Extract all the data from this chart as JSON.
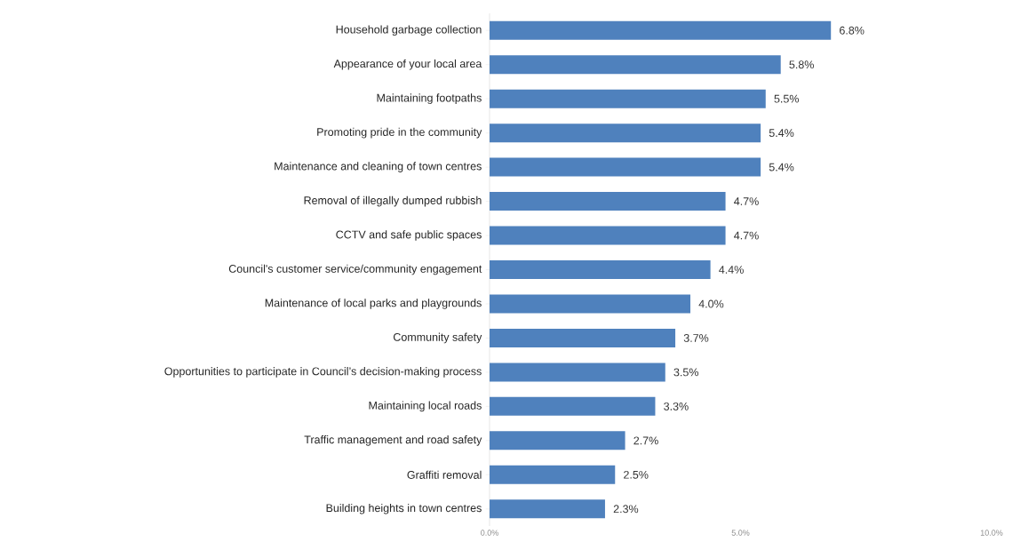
{
  "chart_data": {
    "type": "bar",
    "orientation": "horizontal",
    "color": "#4f81bd",
    "categories": [
      "Household garbage collection",
      "Appearance of your local area",
      "Maintaining footpaths",
      "Promoting pride in the community",
      "Maintenance and cleaning of town centres",
      "Removal of illegally dumped rubbish",
      "CCTV and safe public spaces",
      "Council's customer service/community engagement",
      "Maintenance of local parks and playgrounds",
      "Community safety",
      "Opportunities to participate in Council’s decision-making process",
      "Maintaining local roads",
      "Traffic management and road safety",
      "Graffiti removal",
      "Building heights in town centres"
    ],
    "values": [
      6.8,
      5.8,
      5.5,
      5.4,
      5.4,
      4.7,
      4.7,
      4.4,
      4.0,
      3.7,
      3.5,
      3.3,
      2.7,
      2.5,
      2.3
    ],
    "value_labels": [
      "6.8%",
      "5.8%",
      "5.5%",
      "5.4%",
      "5.4%",
      "4.7%",
      "4.7%",
      "4.4%",
      "4.0%",
      "3.7%",
      "3.5%",
      "3.3%",
      "2.7%",
      "2.5%",
      "2.3%"
    ],
    "xlim": [
      0,
      10
    ],
    "xticks": [
      {
        "value": 0,
        "label": "0.0%"
      },
      {
        "value": 5,
        "label": "5.0%"
      },
      {
        "value": 10,
        "label": "10.0%"
      }
    ],
    "grid": false
  }
}
